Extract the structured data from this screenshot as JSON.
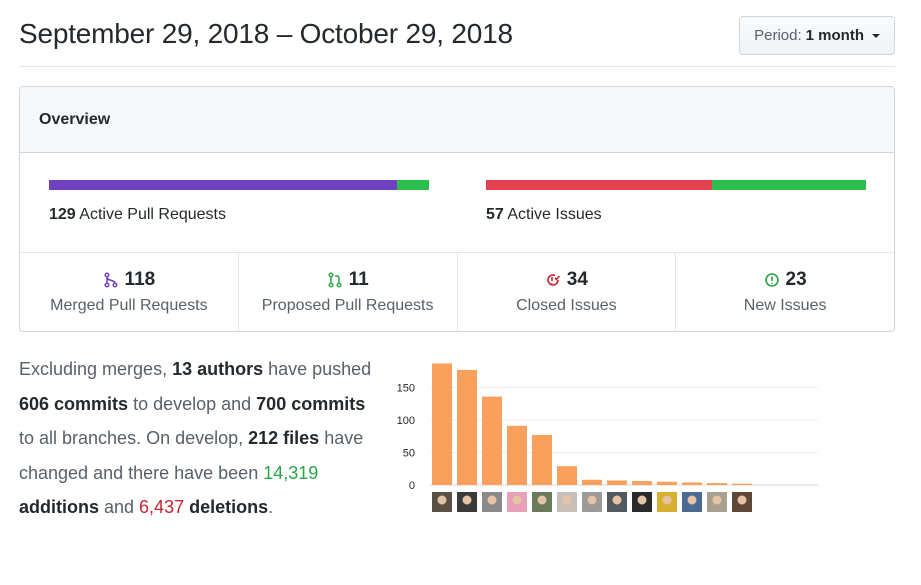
{
  "header": {
    "date_range": "September 29, 2018 – October 29, 2018",
    "period_label": "Period:",
    "period_value": "1 month"
  },
  "overview": {
    "title": "Overview",
    "pull_requests_bar": {
      "count": "129",
      "label": "Active Pull Requests",
      "merged_fraction": 0.915,
      "colors": [
        "#6f42c1",
        "#2cbe4e"
      ]
    },
    "issues_bar": {
      "count": "57",
      "label": "Active Issues",
      "closed_fraction": 0.596,
      "colors": [
        "#e4404f",
        "#2cbe4e"
      ]
    },
    "stats": [
      {
        "icon": "merged-pr-icon",
        "count": "118",
        "label": "Merged Pull Requests",
        "color": "#6f42c1"
      },
      {
        "icon": "open-pr-icon",
        "count": "11",
        "label": "Proposed Pull Requests",
        "color": "#28a745"
      },
      {
        "icon": "closed-issue-icon",
        "count": "34",
        "label": "Closed Issues",
        "color": "#cb2431"
      },
      {
        "icon": "open-issue-icon",
        "count": "23",
        "label": "New Issues",
        "color": "#28a745"
      }
    ]
  },
  "summary": {
    "t1": "Excluding merges, ",
    "authors": "13 authors",
    "t2": " have pushed ",
    "commits_develop": "606 commits",
    "t3": " to develop and ",
    "commits_all": "700 commits",
    "t4": " to all branches. On develop, ",
    "files": "212 files",
    "t5": " have changed and there have been ",
    "additions_num": "14,319",
    "additions_word": " additions",
    "t6": " and ",
    "deletions_num": "6,437",
    "deletions_word": " deletions",
    "t7": "."
  },
  "chart_data": {
    "type": "bar",
    "title": "",
    "xlabel": "",
    "ylabel": "",
    "ylim": [
      0,
      200
    ],
    "yticks": [
      "0",
      "50",
      "100",
      "150"
    ],
    "values": [
      187,
      177,
      136,
      91,
      77,
      29,
      8,
      7,
      6,
      5,
      4,
      3,
      2
    ],
    "bar_color": "#f9a05c",
    "avatars": [
      "avatar-1",
      "avatar-2",
      "avatar-3",
      "avatar-4",
      "avatar-5",
      "avatar-6",
      "avatar-7",
      "avatar-8",
      "avatar-9",
      "avatar-10",
      "avatar-11",
      "avatar-12",
      "avatar-13"
    ],
    "avatar_colors": [
      "#5a5046",
      "#3a3a3a",
      "#8a8a8a",
      "#e8a0b8",
      "#6a7a5a",
      "#c8c0b8",
      "#9a9a9a",
      "#505a60",
      "#2a2a2a",
      "#d8b030",
      "#4a6a90",
      "#a8a090",
      "#604838"
    ]
  }
}
